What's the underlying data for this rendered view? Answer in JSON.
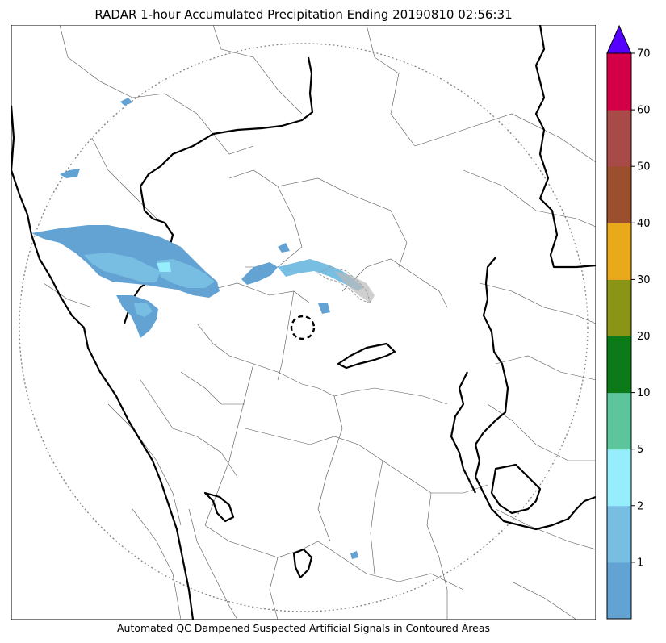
{
  "title": "RADAR 1-hour Accumulated Precipitation Ending 20190810 02:56:31",
  "footer": "Automated QC Dampened Suspected Artificial Signals in Contoured Areas",
  "colorbar": {
    "levels": [
      {
        "label": "",
        "color": "#63a3d4"
      },
      {
        "label": "1",
        "color": "#78bde2"
      },
      {
        "label": "2",
        "color": "#96eefc"
      },
      {
        "label": "5",
        "color": "#5dc59b"
      },
      {
        "label": "10",
        "color": "#0d7a19"
      },
      {
        "label": "20",
        "color": "#8a9517"
      },
      {
        "label": "30",
        "color": "#e8a91b"
      },
      {
        "label": "40",
        "color": "#9c4f2c"
      },
      {
        "label": "50",
        "color": "#a84a47"
      },
      {
        "label": "60",
        "color": "#d40047"
      }
    ],
    "top_label": "70",
    "extend_color": "#5500ff"
  }
}
